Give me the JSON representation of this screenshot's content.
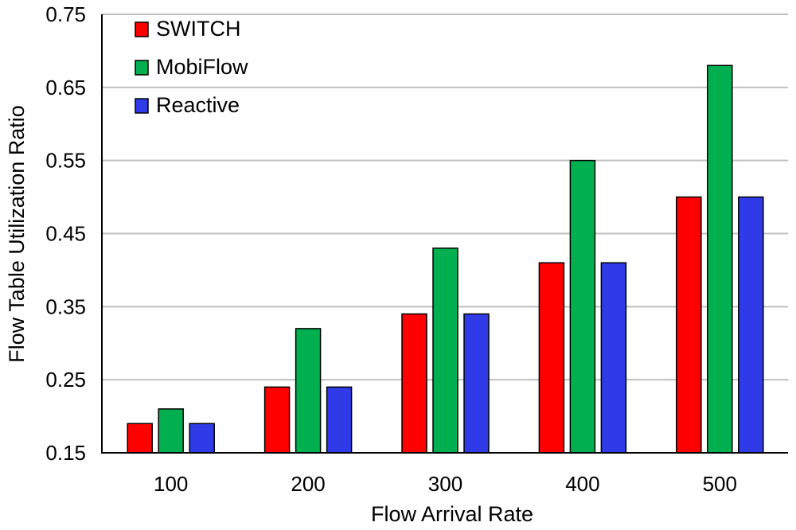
{
  "chart_data": {
    "type": "bar",
    "title": "",
    "xlabel": "Flow Arrival Rate",
    "ylabel": "Flow Table Utilization Ratio",
    "categories": [
      "100",
      "200",
      "300",
      "400",
      "500"
    ],
    "series": [
      {
        "name": "SWITCH",
        "color": "#ff0000",
        "values": [
          0.19,
          0.24,
          0.34,
          0.41,
          0.5
        ]
      },
      {
        "name": "MobiFlow",
        "color": "#00b050",
        "values": [
          0.21,
          0.32,
          0.43,
          0.55,
          0.68
        ]
      },
      {
        "name": "Reactive",
        "color": "#2e3be6",
        "values": [
          0.19,
          0.24,
          0.34,
          0.41,
          0.5
        ]
      }
    ],
    "ylim": [
      0.15,
      0.75
    ],
    "yticks": [
      "0.15",
      "0.25",
      "0.35",
      "0.45",
      "0.55",
      "0.65",
      "0.75"
    ],
    "grid": true,
    "legend": "top-left"
  }
}
